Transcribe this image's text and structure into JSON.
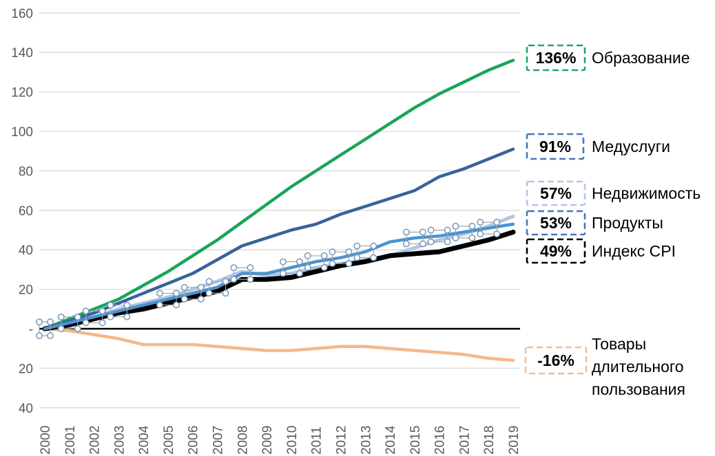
{
  "chart_data": {
    "type": "line",
    "title": "",
    "xlabel": "",
    "ylabel": "",
    "ylim": [
      -40,
      160
    ],
    "grid": true,
    "grid_color": "#D9D9D9",
    "zero_line_color": "#000000",
    "axis_text_color": "#595959",
    "legend_position": "right",
    "x": [
      "2000",
      "2001",
      "2002",
      "2003",
      "2004",
      "2005",
      "2006",
      "2007",
      "2008",
      "2009",
      "2010",
      "2011",
      "2012",
      "2013",
      "2014",
      "2015",
      "2016",
      "2017",
      "2018",
      "2019"
    ],
    "y_ticks": [
      {
        "value": 160,
        "label": "160"
      },
      {
        "value": 140,
        "label": "140"
      },
      {
        "value": 120,
        "label": "120"
      },
      {
        "value": 100,
        "label": "100"
      },
      {
        "value": 80,
        "label": "80"
      },
      {
        "value": 60,
        "label": "60"
      },
      {
        "value": 40,
        "label": "40"
      },
      {
        "value": 20,
        "label": "20"
      },
      {
        "value": 0,
        "label": "-"
      },
      {
        "value": -20,
        "label": "20"
      },
      {
        "value": -40,
        "label": "40"
      }
    ],
    "series": [
      {
        "name": "Недвижимость",
        "final_label": "57%",
        "color": "#B3C6E4",
        "width": 5,
        "values": [
          0,
          3,
          6,
          10,
          13,
          16,
          20,
          24,
          29,
          27,
          28,
          31,
          33,
          35,
          37,
          41,
          45,
          48,
          52,
          57
        ]
      },
      {
        "name": "Образование",
        "final_label": "136%",
        "color": "#18A55A",
        "width": 4.5,
        "values": [
          0,
          5,
          10,
          15,
          22,
          29,
          37,
          45,
          54,
          63,
          72,
          80,
          88,
          96,
          104,
          112,
          119,
          125,
          131,
          136
        ]
      },
      {
        "name": "Медуслуги",
        "final_label": "91%",
        "color": "#38639B",
        "width": 4.5,
        "values": [
          0,
          4,
          8,
          13,
          18,
          23,
          28,
          35,
          42,
          46,
          50,
          53,
          58,
          62,
          66,
          70,
          77,
          81,
          86,
          91
        ]
      },
      {
        "name": "Товары длительного пользования",
        "final_label": "-16%",
        "color": "#F3B98E",
        "width": 4.5,
        "values": [
          0,
          -1,
          -3,
          -5,
          -8,
          -8,
          -8,
          -9,
          -10,
          -11,
          -11,
          -10,
          -9,
          -9,
          -10,
          -11,
          -12,
          -13,
          -15,
          -16
        ]
      },
      {
        "name": "Индекс CPI",
        "final_label": "49%",
        "color": "#000000",
        "width": 7,
        "values": [
          0,
          2,
          5,
          8,
          10,
          13,
          16,
          19,
          25,
          25,
          26,
          29,
          32,
          34,
          37,
          38,
          39,
          42,
          45,
          49
        ]
      },
      {
        "name": "Продукты",
        "final_label": "53%",
        "color": "#4B93CD",
        "width": 4.5,
        "values": [
          0,
          3,
          6,
          9,
          12,
          15,
          18,
          21,
          28,
          28,
          31,
          34,
          36,
          39,
          44,
          46,
          47,
          49,
          51,
          53
        ],
        "selected": true,
        "selection_handle_points": [
          0,
          1,
          2,
          3,
          5,
          6,
          7,
          8,
          10,
          11,
          12,
          13,
          15,
          16,
          17,
          18
        ],
        "handle_stroke": "#7496BA",
        "handle_fill": "#FFFFFF",
        "handle_connector": "#A6A6A6"
      }
    ]
  },
  "legend": {
    "items": [
      {
        "value": "136%",
        "label": "Образование",
        "box_color": "#21A366"
      },
      {
        "value": "91%",
        "label": "Медуслуги",
        "box_color": "#4577BE"
      },
      {
        "value": "57%",
        "label": "Недвижимость",
        "box_color": "#B3C6E4"
      },
      {
        "value": "53%",
        "label": "Продукты",
        "box_color": "#4577BE"
      },
      {
        "value": "49%",
        "label": "Индекс CPI",
        "box_color": "#000000"
      },
      {
        "value": "-16%",
        "label": "Товары длительного пользования",
        "box_color": "#F4BD95"
      }
    ]
  }
}
